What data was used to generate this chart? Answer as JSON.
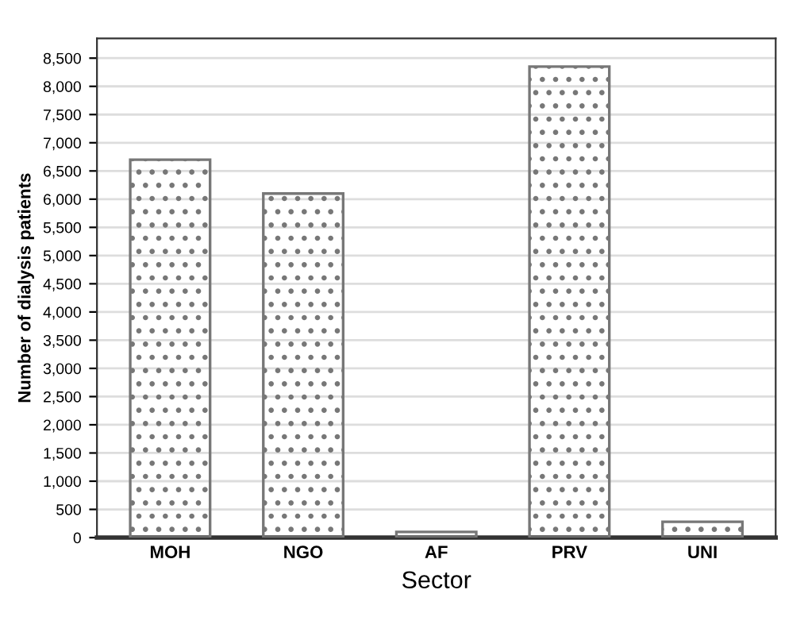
{
  "chart_data": {
    "type": "bar",
    "xlabel": "Sector",
    "ylabel": "Number of dialysis patients",
    "categories": [
      "MOH",
      "NGO",
      "AF",
      "PRV",
      "UNI"
    ],
    "values": [
      6700,
      6100,
      100,
      8350,
      280
    ],
    "color": "#777777",
    "ylim": [
      0,
      8850
    ],
    "yticks": [
      {
        "value": 0,
        "label": "0"
      },
      {
        "value": 500,
        "label": "500"
      },
      {
        "value": 1000,
        "label": "1,000"
      },
      {
        "value": 1500,
        "label": "1,500"
      },
      {
        "value": 2000,
        "label": "2,000"
      },
      {
        "value": 2500,
        "label": "2,500"
      },
      {
        "value": 3000,
        "label": "3,000"
      },
      {
        "value": 3500,
        "label": "3,500"
      },
      {
        "value": 4000,
        "label": "4,000"
      },
      {
        "value": 4500,
        "label": "4,500"
      },
      {
        "value": 5000,
        "label": "5,000"
      },
      {
        "value": 5500,
        "label": "5,500"
      },
      {
        "value": 6000,
        "label": "6,000"
      },
      {
        "value": 6500,
        "label": "6,500"
      },
      {
        "value": 7000,
        "label": "7,000"
      },
      {
        "value": 7500,
        "label": "7,500"
      },
      {
        "value": 8000,
        "label": "8,000"
      },
      {
        "value": 8500,
        "label": "8,500"
      }
    ],
    "grid": "y",
    "legend": false
  }
}
